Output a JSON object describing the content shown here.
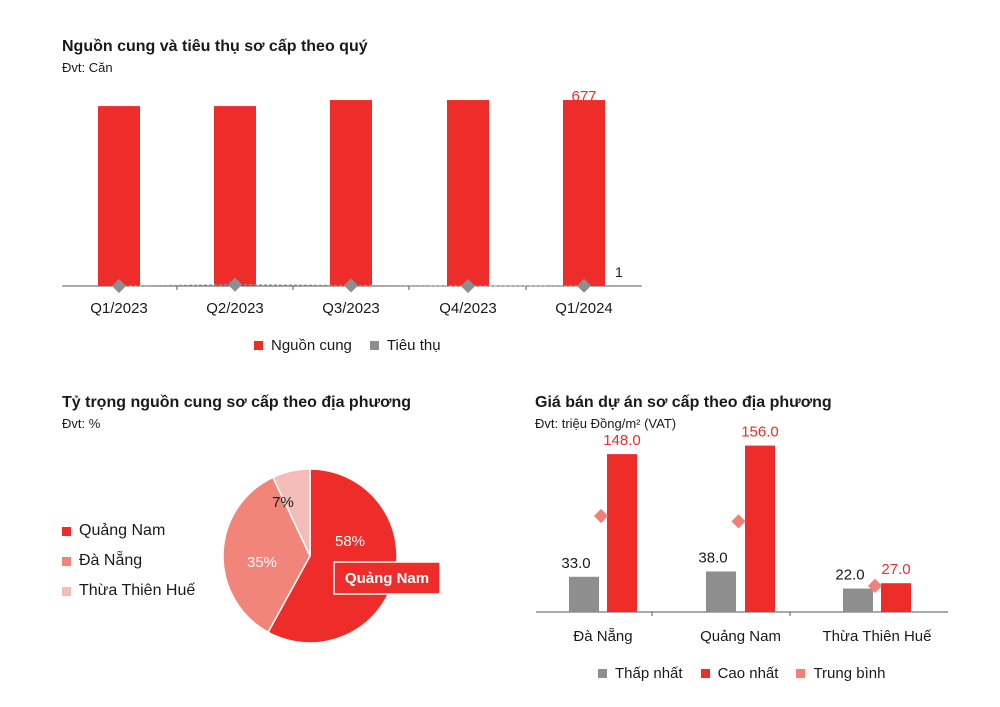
{
  "colors": {
    "red": "#ee2d2a",
    "gray": "#8e8e8e",
    "medium": "#f2857a",
    "light": "#f4bcb8",
    "pink": "#f08078"
  },
  "chart1": {
    "title": "Nguồn cung và tiêu thụ sơ cấp theo quý",
    "unit": "Đvt: Căn",
    "legend": {
      "supply": "Nguồn cung",
      "consumption": "Tiêu thụ"
    },
    "last_supply_label": "677",
    "last_consumption_label": "1"
  },
  "chart2": {
    "title": "Tỷ trọng nguồn cung sơ cấp theo địa phương",
    "unit": "Đvt: %",
    "legend": [
      "Quảng Nam",
      "Đà Nẵng",
      "Thừa Thiên Huế"
    ],
    "callout": "Quảng Nam"
  },
  "chart3": {
    "title": "Giá bán dự án sơ cấp theo địa phương",
    "unit": "Đvt: triệu Đồng/m² (VAT)",
    "legend": {
      "min": "Thấp nhất",
      "max": "Cao nhất",
      "avg": "Trung bình"
    }
  },
  "chart_data": [
    {
      "type": "bar",
      "title": "Nguồn cung và tiêu thụ sơ cấp theo quý",
      "categories": [
        "Q1/2023",
        "Q2/2023",
        "Q3/2023",
        "Q4/2023",
        "Q1/2024"
      ],
      "series": [
        {
          "name": "Nguồn cung",
          "type": "bar",
          "values": [
            655,
            655,
            677,
            677,
            677
          ]
        },
        {
          "name": "Tiêu thụ",
          "type": "line",
          "values": [
            0,
            5,
            2,
            0,
            1
          ]
        }
      ],
      "ylim": [
        0,
        750
      ],
      "data_labels": {
        "Q1/2024": [
          "677",
          "1"
        ]
      }
    },
    {
      "type": "pie",
      "title": "Tỷ trọng nguồn cung sơ cấp theo địa phương",
      "labels": [
        "Quảng Nam",
        "Đà Nẵng",
        "Thừa Thiên Huế"
      ],
      "values": [
        58,
        35,
        7
      ],
      "value_labels": [
        "58%",
        "35%",
        "7%"
      ]
    },
    {
      "type": "bar",
      "title": "Giá bán dự án sơ cấp theo địa phương",
      "categories": [
        "Đà Nẵng",
        "Quảng Nam",
        "Thừa Thiên Huế"
      ],
      "series": [
        {
          "name": "Thấp nhất",
          "values": [
            33.0,
            38.0,
            22.0
          ],
          "labels": [
            "33.0",
            "38.0",
            "22.0"
          ]
        },
        {
          "name": "Cao nhất",
          "values": [
            148.0,
            156.0,
            27.0
          ],
          "labels": [
            "148.0",
            "156.0",
            "27.0"
          ]
        },
        {
          "name": "Trung bình",
          "type": "marker",
          "values": [
            90,
            85,
            24.5
          ]
        }
      ],
      "ylim": [
        0,
        180
      ]
    }
  ]
}
